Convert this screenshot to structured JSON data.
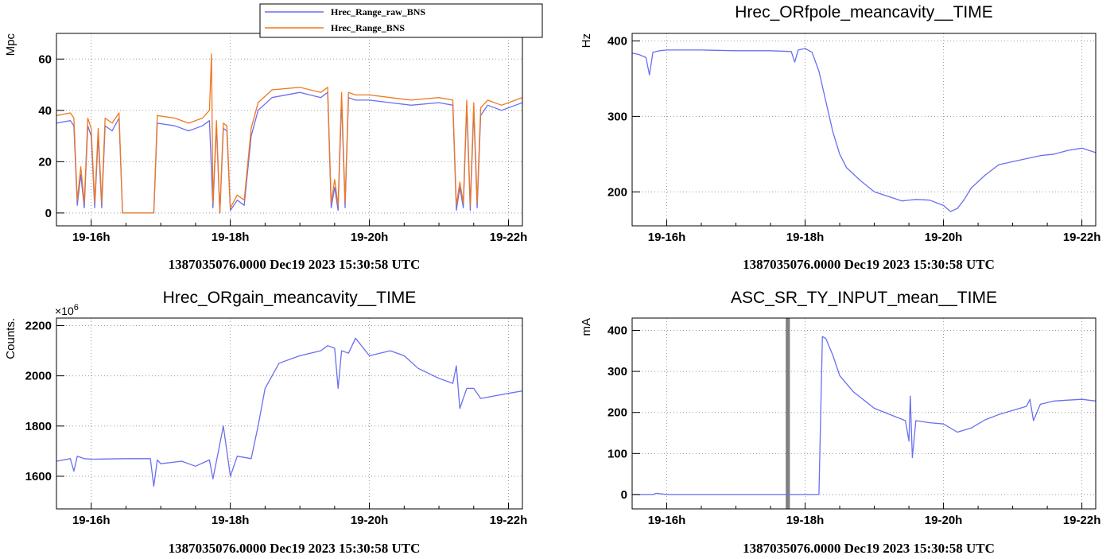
{
  "colors": {
    "raw": "#6a6ff0",
    "bns": "#f07820",
    "band": "#555555"
  },
  "chart_data": [
    {
      "type": "line",
      "title": "",
      "ylabel": "Mpc",
      "xlim": [
        15.5,
        22.2
      ],
      "ylim": [
        -5,
        70
      ],
      "x_ticks": [
        "19-16h",
        "19-18h",
        "19-20h",
        "19-22h"
      ],
      "y_ticks": [
        "0",
        "20",
        "40",
        "60"
      ],
      "footer": "1387035076.0000 Dec19 2023 15:30:58 UTC",
      "legend": {
        "position": "top-center",
        "entries": [
          "Hrec_Range_raw_BNS",
          "Hrec_Range_BNS"
        ]
      },
      "series": [
        {
          "name": "Hrec_Range_raw_BNS",
          "color": "#6a6ff0",
          "x": [
            15.5,
            15.7,
            15.75,
            15.8,
            15.85,
            15.9,
            15.95,
            16.0,
            16.05,
            16.1,
            16.15,
            16.2,
            16.3,
            16.4,
            16.45,
            16.9,
            16.95,
            17.2,
            17.4,
            17.6,
            17.7,
            17.75,
            17.8,
            17.85,
            17.9,
            17.95,
            18.0,
            18.1,
            18.2,
            18.3,
            18.4,
            18.6,
            19.0,
            19.3,
            19.4,
            19.45,
            19.5,
            19.55,
            19.6,
            19.65,
            19.7,
            19.8,
            20.0,
            20.3,
            20.6,
            21.0,
            21.2,
            21.25,
            21.3,
            21.35,
            21.4,
            21.45,
            21.5,
            21.55,
            21.6,
            21.7,
            21.9,
            22.1,
            22.2
          ],
          "y": [
            35,
            36,
            34,
            3,
            15,
            2,
            34,
            30,
            2,
            30,
            2,
            34,
            32,
            37,
            0,
            0,
            35,
            34,
            32,
            34,
            36,
            2,
            34,
            0,
            33,
            32,
            1,
            5,
            3,
            30,
            40,
            45,
            47,
            45,
            47,
            2,
            10,
            1,
            44,
            2,
            45,
            44,
            44,
            43,
            42,
            43,
            42,
            1,
            10,
            2,
            42,
            1,
            40,
            2,
            38,
            42,
            40,
            42,
            43
          ]
        },
        {
          "name": "Hrec_Range_BNS",
          "color": "#f07820",
          "x": [
            15.5,
            15.7,
            15.75,
            15.8,
            15.85,
            15.9,
            15.95,
            16.0,
            16.05,
            16.1,
            16.15,
            16.2,
            16.3,
            16.4,
            16.45,
            16.9,
            16.95,
            17.2,
            17.4,
            17.6,
            17.7,
            17.73,
            17.75,
            17.8,
            17.85,
            17.9,
            17.95,
            18.0,
            18.1,
            18.2,
            18.3,
            18.4,
            18.6,
            19.0,
            19.3,
            19.4,
            19.45,
            19.5,
            19.55,
            19.6,
            19.65,
            19.7,
            19.8,
            20.0,
            20.3,
            20.6,
            21.0,
            21.2,
            21.25,
            21.3,
            21.35,
            21.4,
            21.45,
            21.5,
            21.55,
            21.6,
            21.7,
            21.9,
            22.1,
            22.2
          ],
          "y": [
            38,
            39,
            37,
            5,
            18,
            4,
            37,
            33,
            4,
            33,
            4,
            37,
            35,
            39,
            0,
            0,
            38,
            37,
            35,
            37,
            40,
            62,
            4,
            36,
            0,
            35,
            34,
            2,
            7,
            5,
            33,
            43,
            48,
            49,
            47,
            49,
            4,
            13,
            3,
            47,
            4,
            47,
            46,
            46,
            45,
            44,
            45,
            44,
            3,
            12,
            4,
            44,
            3,
            43,
            4,
            41,
            44,
            42,
            44,
            45
          ]
        }
      ]
    },
    {
      "type": "line",
      "title": "Hrec_ORfpole_meancavity__TIME",
      "ylabel": "Hz",
      "xlim": [
        15.5,
        22.2
      ],
      "ylim": [
        155,
        410
      ],
      "x_ticks": [
        "19-16h",
        "19-18h",
        "19-20h",
        "19-22h"
      ],
      "y_ticks": [
        "200",
        "300",
        "400"
      ],
      "footer": "1387035076.0000 Dec19 2023 15:30:58 UTC",
      "series": [
        {
          "color": "#6a6ff0",
          "x": [
            15.5,
            15.6,
            15.7,
            15.75,
            15.8,
            15.9,
            16.0,
            16.5,
            17.0,
            17.5,
            17.8,
            17.85,
            17.9,
            18.0,
            18.1,
            18.2,
            18.3,
            18.4,
            18.5,
            18.6,
            18.8,
            19.0,
            19.2,
            19.4,
            19.6,
            19.8,
            20.0,
            20.1,
            20.2,
            20.3,
            20.4,
            20.6,
            20.8,
            21.0,
            21.2,
            21.4,
            21.6,
            21.8,
            22.0,
            22.2
          ],
          "y": [
            384,
            382,
            378,
            355,
            385,
            387,
            388,
            388,
            387,
            387,
            386,
            372,
            388,
            390,
            385,
            360,
            320,
            280,
            250,
            232,
            215,
            200,
            194,
            188,
            190,
            189,
            182,
            174,
            178,
            190,
            205,
            222,
            236,
            240,
            244,
            248,
            250,
            255,
            258,
            252
          ]
        }
      ]
    },
    {
      "type": "line",
      "title": "Hrec_ORgain_meancavity__TIME",
      "ylabel": "Counts.",
      "multiplier": "×10",
      "multiplier_exp": "6",
      "xlim": [
        15.5,
        22.2
      ],
      "ylim": [
        1470,
        2230
      ],
      "x_ticks": [
        "19-16h",
        "19-18h",
        "19-20h",
        "19-22h"
      ],
      "y_ticks": [
        "1600",
        "1800",
        "2000",
        "2200"
      ],
      "footer": "1387035076.0000 Dec19 2023 15:30:58 UTC",
      "series": [
        {
          "color": "#6a6ff0",
          "x": [
            15.5,
            15.7,
            15.75,
            15.8,
            15.9,
            16.0,
            16.5,
            16.85,
            16.9,
            16.95,
            17.0,
            17.3,
            17.5,
            17.7,
            17.75,
            17.8,
            17.9,
            18.0,
            18.1,
            18.3,
            18.4,
            18.5,
            18.7,
            19.0,
            19.3,
            19.4,
            19.5,
            19.55,
            19.6,
            19.7,
            19.8,
            20.0,
            20.3,
            20.5,
            20.7,
            21.0,
            21.2,
            21.25,
            21.3,
            21.4,
            21.5,
            21.6,
            21.8,
            22.0,
            22.2
          ],
          "y": [
            1660,
            1670,
            1620,
            1680,
            1670,
            1668,
            1670,
            1670,
            1560,
            1665,
            1650,
            1660,
            1640,
            1665,
            1590,
            1660,
            1800,
            1600,
            1680,
            1670,
            1800,
            1950,
            2050,
            2080,
            2100,
            2120,
            2110,
            1950,
            2100,
            2090,
            2150,
            2080,
            2100,
            2080,
            2030,
            1990,
            1970,
            2040,
            1870,
            1950,
            1950,
            1910,
            1920,
            1930,
            1940
          ]
        }
      ]
    },
    {
      "type": "line",
      "title": "ASC_SR_TY_INPUT_mean__TIME",
      "ylabel": "mA",
      "xlim": [
        15.5,
        22.2
      ],
      "ylim": [
        -35,
        430
      ],
      "x_ticks": [
        "19-16h",
        "19-18h",
        "19-20h",
        "19-22h"
      ],
      "y_ticks": [
        "0",
        "100",
        "200",
        "300",
        "400"
      ],
      "footer": "1387035076.0000 Dec19 2023 15:30:58 UTC",
      "band_x": [
        17.72,
        17.78
      ],
      "series": [
        {
          "color": "#6a6ff0",
          "x": [
            15.5,
            15.8,
            15.85,
            16.0,
            17.0,
            17.5,
            18.2,
            18.25,
            18.3,
            18.4,
            18.5,
            18.7,
            19.0,
            19.3,
            19.45,
            19.5,
            19.52,
            19.55,
            19.6,
            19.8,
            20.0,
            20.2,
            20.4,
            20.6,
            20.8,
            21.0,
            21.2,
            21.25,
            21.3,
            21.4,
            21.6,
            21.8,
            22.0,
            22.2
          ],
          "y": [
            0,
            0,
            3,
            0,
            0,
            0,
            0,
            385,
            380,
            340,
            290,
            250,
            210,
            190,
            180,
            130,
            240,
            90,
            180,
            175,
            172,
            152,
            162,
            182,
            195,
            205,
            215,
            232,
            180,
            220,
            228,
            230,
            232,
            228
          ]
        }
      ]
    }
  ]
}
